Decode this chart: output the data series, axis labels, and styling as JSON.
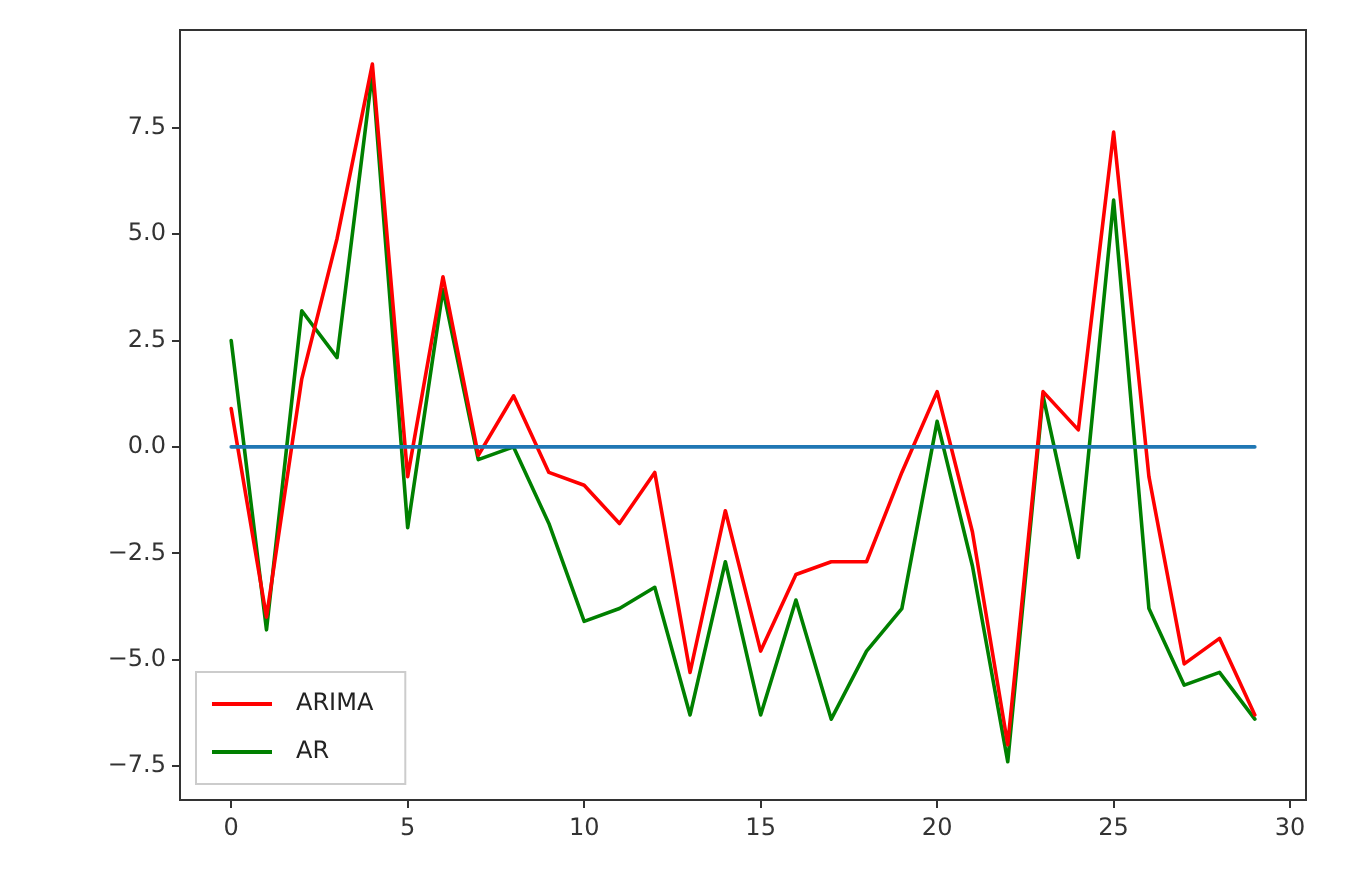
{
  "chart_data": {
    "type": "line",
    "x": [
      0,
      1,
      2,
      3,
      4,
      5,
      6,
      7,
      8,
      9,
      10,
      11,
      12,
      13,
      14,
      15,
      16,
      17,
      18,
      19,
      20,
      21,
      22,
      23,
      24,
      25,
      26,
      27,
      28,
      29
    ],
    "series": [
      {
        "color": "#1f77b4",
        "values": [
          0,
          0,
          0,
          0,
          0,
          0,
          0,
          0,
          0,
          0,
          0,
          0,
          0,
          0,
          0,
          0,
          0,
          0,
          0,
          0,
          0,
          0,
          0,
          0,
          0,
          0,
          0,
          0,
          0,
          0
        ]
      },
      {
        "name": "ARIMA",
        "color": "#ff0000",
        "values": [
          0.9,
          -4.0,
          1.6,
          4.9,
          9.0,
          -0.7,
          4.0,
          -0.2,
          1.2,
          -0.6,
          -0.9,
          -1.8,
          -0.6,
          -5.3,
          -1.5,
          -4.8,
          -3.0,
          -2.7,
          -2.7,
          -0.6,
          1.3,
          -2.0,
          -7.0,
          1.3,
          0.4,
          7.4,
          -0.7,
          -5.1,
          -4.5,
          -6.3
        ]
      },
      {
        "name": "AR",
        "color": "#008000",
        "values": [
          2.5,
          -4.3,
          3.2,
          2.1,
          8.8,
          -1.9,
          3.7,
          -0.3,
          0.0,
          -1.8,
          -4.1,
          -3.8,
          -3.3,
          -6.3,
          -2.7,
          -6.3,
          -3.6,
          -6.4,
          -4.8,
          -3.8,
          0.6,
          -2.8,
          -7.4,
          1.2,
          -2.6,
          5.8,
          -3.8,
          -5.6,
          -5.3,
          -6.4
        ]
      }
    ],
    "xlim": [
      -1.45,
      30.45
    ],
    "xticks": [
      0,
      5,
      10,
      15,
      20,
      25,
      30
    ],
    "ylim": [
      -8.3,
      9.8
    ],
    "yticks": [
      {
        "value": -7.5,
        "label": "−7.5"
      },
      {
        "value": -5,
        "label": "−5.0"
      },
      {
        "value": -2.5,
        "label": "−2.5"
      },
      {
        "value": 0,
        "label": "0.0"
      },
      {
        "value": 2.5,
        "label": "2.5"
      },
      {
        "value": 5,
        "label": "5.0"
      },
      {
        "value": 7.5,
        "label": "7.5"
      }
    ],
    "grid": false,
    "legend": "bottom left",
    "marker": "none",
    "line_style": "solid"
  }
}
